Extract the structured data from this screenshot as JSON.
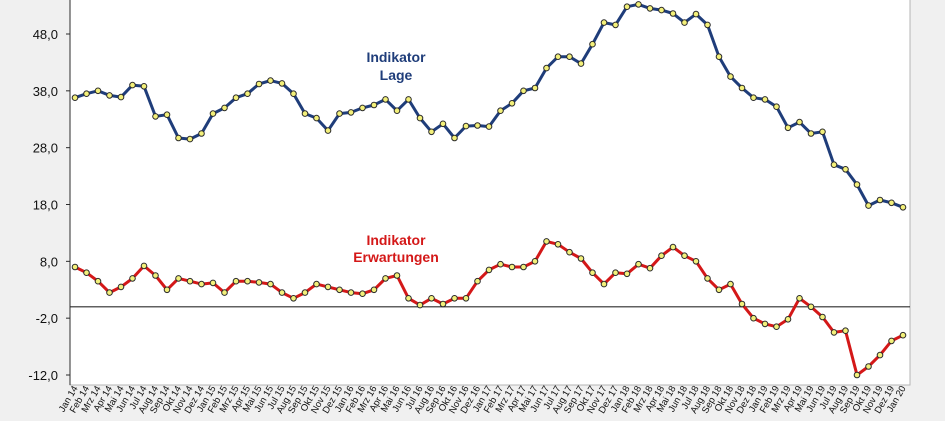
{
  "chart_data": {
    "type": "line",
    "x": [
      "Jan 14",
      "Feb 14",
      "Mrz 14",
      "Apr 14",
      "Mai 14",
      "Jun 14",
      "Jul 14",
      "Aug 14",
      "Sep 14",
      "Okt 14",
      "Nov 14",
      "Dez 14",
      "Jan 15",
      "Feb 15",
      "Mrz 15",
      "Apr 15",
      "Mai 15",
      "Jun 15",
      "Jul 15",
      "Aug 15",
      "Sep 15",
      "Okt 15",
      "Nov 15",
      "Dez 15",
      "Jan 16",
      "Feb 16",
      "Mrz 16",
      "Apr 16",
      "Mai 16",
      "Jun 16",
      "Jul 16",
      "Aug 16",
      "Sep 16",
      "Okt 16",
      "Nov 16",
      "Dez 16",
      "Jan 17",
      "Feb 17",
      "Mrz 17",
      "Apr 17",
      "Mai 17",
      "Jun 17",
      "Jul 17",
      "Aug 17",
      "Sep 17",
      "Okt 17",
      "Nov 17",
      "Dez 17",
      "Jan 18",
      "Feb 18",
      "Mrz 18",
      "Apr 18",
      "Mai 18",
      "Jun 18",
      "Jul 18",
      "Aug 18",
      "Sep 18",
      "Okt 18",
      "Nov 18",
      "Dez 18",
      "Jan 19",
      "Feb 19",
      "Mrz 19",
      "Apr 19",
      "Mai 19",
      "Jun 19",
      "Jul 19",
      "Aug 19",
      "Sep 19",
      "Okt 19",
      "Nov 19",
      "Dez 19",
      "Jan 20"
    ],
    "series": [
      {
        "name": "Lage",
        "values": [
          36.8,
          37.5,
          38.0,
          37.2,
          36.9,
          39.0,
          38.8,
          33.5,
          33.8,
          29.7,
          29.5,
          30.5,
          34.0,
          35.0,
          36.8,
          37.5,
          39.2,
          39.8,
          39.3,
          37.5,
          34.0,
          33.2,
          31.0,
          34.0,
          34.2,
          35.0,
          35.5,
          36.5,
          34.5,
          36.5,
          33.2,
          30.8,
          32.2,
          29.7,
          31.8,
          31.9,
          31.7,
          34.5,
          35.8,
          38.0,
          38.5,
          42.0,
          44.0,
          44.0,
          42.8,
          46.2,
          50.0,
          49.6,
          52.8,
          53.2,
          52.5,
          52.2,
          51.6,
          50.0,
          51.5,
          49.6,
          44.0,
          40.5,
          38.5,
          36.8,
          36.5,
          35.2,
          31.5,
          32.5,
          30.5,
          30.8,
          25.0,
          24.2,
          21.5,
          17.8,
          18.8,
          18.3,
          17.5
        ],
        "annotation": [
          "Indikator",
          "Lage"
        ],
        "color": "#1f3d7a"
      },
      {
        "name": "Erwartungen",
        "values": [
          7.0,
          6.0,
          4.5,
          2.5,
          3.5,
          5.0,
          7.2,
          5.5,
          3.0,
          5.0,
          4.5,
          4.0,
          4.2,
          2.5,
          4.5,
          4.5,
          4.3,
          4.0,
          2.5,
          1.5,
          2.5,
          4.0,
          3.5,
          3.0,
          2.5,
          2.3,
          3.0,
          5.0,
          5.5,
          1.5,
          0.3,
          1.5,
          0.5,
          1.5,
          1.5,
          4.5,
          6.5,
          7.5,
          7.0,
          7.0,
          8.0,
          11.5,
          11.0,
          9.6,
          8.5,
          6.0,
          4.0,
          6.0,
          5.8,
          7.5,
          6.8,
          9.0,
          10.5,
          9.0,
          8.0,
          5.0,
          3.0,
          4.0,
          0.5,
          -2.0,
          -3.0,
          -3.5,
          -2.2,
          1.5,
          0.0,
          -1.8,
          -4.5,
          -4.2,
          -12.0,
          -10.5,
          -8.5,
          -6.0,
          -5.0
        ],
        "annotation": [
          "Indikator",
          "Erwartungen"
        ],
        "color": "#d41818"
      }
    ],
    "ylim": [
      -12.0,
      53.0
    ],
    "yticks": [
      "-12,0",
      "-2,0",
      "8,0",
      "18,0",
      "28,0",
      "38,0",
      "48,0"
    ],
    "ytick_values": [
      -12,
      -2,
      8,
      18,
      28,
      38,
      48
    ],
    "zero_line": 0,
    "grid": false,
    "legend": "none",
    "title": "",
    "xlabel": "",
    "ylabel": ""
  },
  "colors": {
    "background": "#f0f0f0",
    "plot_background": "#ffffff",
    "lage": "#1f3d7a",
    "erwartungen": "#d41818",
    "marker_fill": "#f3f07a"
  }
}
